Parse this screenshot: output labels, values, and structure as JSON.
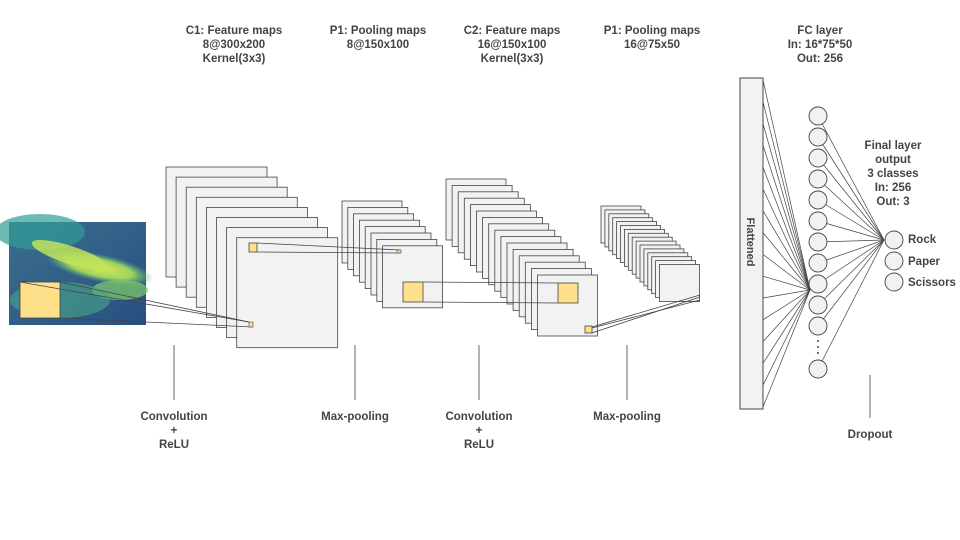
{
  "stages": [
    {
      "title": "C1: Feature maps",
      "line2": "8@300x200",
      "line3": "Kernel(3x3)"
    },
    {
      "title": "P1: Pooling maps",
      "line2": "8@150x100"
    },
    {
      "title": "C2: Feature maps",
      "line2": "16@150x100",
      "line3": "Kernel(3x3)"
    },
    {
      "title": "P1: Pooling maps",
      "line2": "16@75x50"
    },
    {
      "title": "FC layer",
      "line2": "In: 16*75*50",
      "line3": "Out: 256"
    }
  ],
  "operations": [
    {
      "line1": "Convolution",
      "line2": "+",
      "line3": "ReLU"
    },
    {
      "line1": "Max-pooling"
    },
    {
      "line1": "Convolution",
      "line2": "+",
      "line3": "ReLU"
    },
    {
      "line1": "Max-pooling"
    },
    {
      "line1": "Dropout"
    }
  ],
  "flattened_label": "Flattened",
  "final_layer": {
    "l1": "Final layer",
    "l2": "output",
    "l3": "3 classes",
    "l4": "In: 256",
    "l5": "Out: 3"
  },
  "classes": [
    "Rock",
    "Paper",
    "Scissors"
  ],
  "colors": {
    "stroke": "#444444",
    "fill": "#f2f2f2",
    "highlight": "#ffe08a",
    "text": "#444444"
  }
}
